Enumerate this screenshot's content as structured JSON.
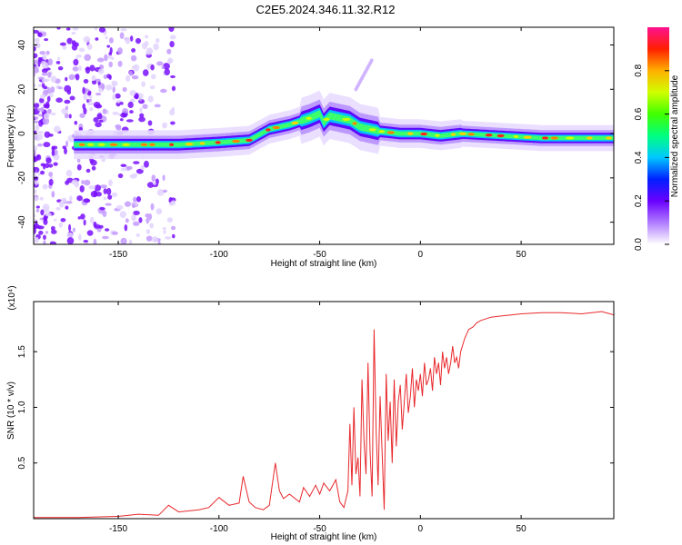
{
  "title": "C2E5.2024.346.11.32.R12",
  "chart_data": [
    {
      "type": "heatmap",
      "xlabel": "Height of straight line (km)",
      "ylabel": "Frequency (Hz)",
      "xlim": [
        -192,
        96
      ],
      "ylim": [
        -50,
        48
      ],
      "xticks": [
        -150,
        -100,
        -50,
        0,
        50
      ],
      "yticks": [
        -40,
        -20,
        0,
        20,
        40
      ],
      "colorbar": {
        "label": "Normalized spectral amplitude",
        "range": [
          0,
          1
        ],
        "ticks": [
          0.0,
          0.2,
          0.4,
          0.6,
          0.8
        ]
      },
      "ridge": {
        "x": [
          -172,
          -160,
          -140,
          -120,
          -100,
          -85,
          -75,
          -65,
          -55,
          -50,
          -48,
          -45,
          -40,
          -35,
          -30,
          -25,
          -20,
          -10,
          0,
          10,
          20,
          40,
          60,
          80,
          95
        ],
        "y": [
          -5,
          -5,
          -5,
          -5,
          -4,
          -3,
          2,
          4,
          7,
          9,
          5,
          8,
          7,
          6,
          3,
          2,
          1,
          0,
          0,
          -1,
          0,
          -1,
          -2,
          -2,
          -2
        ]
      }
    },
    {
      "type": "line",
      "xlabel": "Height of straight line (km)",
      "ylabel": "SNR (10 * v/v)",
      "yscale_label": "(x10⁴)",
      "xlim": [
        -192,
        96
      ],
      "ylim": [
        0,
        1.95
      ],
      "xticks": [
        -150,
        -100,
        -50,
        0,
        50
      ],
      "yticks": [
        0.5,
        1.0,
        1.5
      ],
      "series": [
        {
          "color": "#e8282c",
          "x": [
            -192,
            -170,
            -150,
            -140,
            -130,
            -125,
            -120,
            -110,
            -105,
            -100,
            -95,
            -90,
            -88,
            -85,
            -82,
            -78,
            -75,
            -72,
            -70,
            -68,
            -65,
            -60,
            -58,
            -55,
            -52,
            -50,
            -48,
            -45,
            -42,
            -40,
            -38,
            -36,
            -35,
            -34,
            -33,
            -32,
            -31,
            -30,
            -29,
            -28,
            -27,
            -26,
            -25,
            -24,
            -23,
            -22,
            -21,
            -20,
            -19,
            -18,
            -17,
            -16,
            -15,
            -14,
            -13,
            -12,
            -11,
            -10,
            -9,
            -8,
            -7,
            -6,
            -5,
            -4,
            -3,
            -2,
            -1,
            0,
            1,
            2,
            3,
            4,
            5,
            6,
            7,
            8,
            9,
            10,
            11,
            12,
            13,
            14,
            15,
            16,
            17,
            18,
            19,
            20,
            22,
            24,
            26,
            28,
            30,
            35,
            40,
            45,
            50,
            60,
            70,
            80,
            90,
            96
          ],
          "y": [
            0.01,
            0.01,
            0.02,
            0.04,
            0.03,
            0.12,
            0.06,
            0.08,
            0.1,
            0.19,
            0.12,
            0.14,
            0.38,
            0.15,
            0.1,
            0.08,
            0.12,
            0.5,
            0.25,
            0.18,
            0.22,
            0.15,
            0.28,
            0.2,
            0.3,
            0.22,
            0.32,
            0.25,
            0.35,
            0.15,
            0.1,
            0.25,
            0.85,
            0.3,
            1.0,
            0.4,
            0.55,
            0.2,
            1.25,
            0.7,
            0.4,
            1.4,
            0.6,
            0.2,
            1.7,
            0.8,
            0.3,
            1.1,
            0.6,
            0.08,
            1.3,
            0.7,
            1.05,
            0.5,
            1.25,
            0.65,
            1.05,
            1.2,
            0.8,
            1.05,
            1.3,
            0.95,
            1.1,
            1.35,
            1.0,
            1.25,
            1.15,
            1.3,
            1.1,
            1.4,
            1.2,
            1.25,
            1.35,
            1.15,
            1.45,
            1.3,
            1.4,
            1.2,
            1.5,
            1.35,
            1.45,
            1.3,
            1.4,
            1.55,
            1.4,
            1.45,
            1.35,
            1.5,
            1.62,
            1.7,
            1.72,
            1.76,
            1.78,
            1.81,
            1.82,
            1.83,
            1.84,
            1.85,
            1.85,
            1.84,
            1.86,
            1.83
          ]
        }
      ]
    }
  ]
}
